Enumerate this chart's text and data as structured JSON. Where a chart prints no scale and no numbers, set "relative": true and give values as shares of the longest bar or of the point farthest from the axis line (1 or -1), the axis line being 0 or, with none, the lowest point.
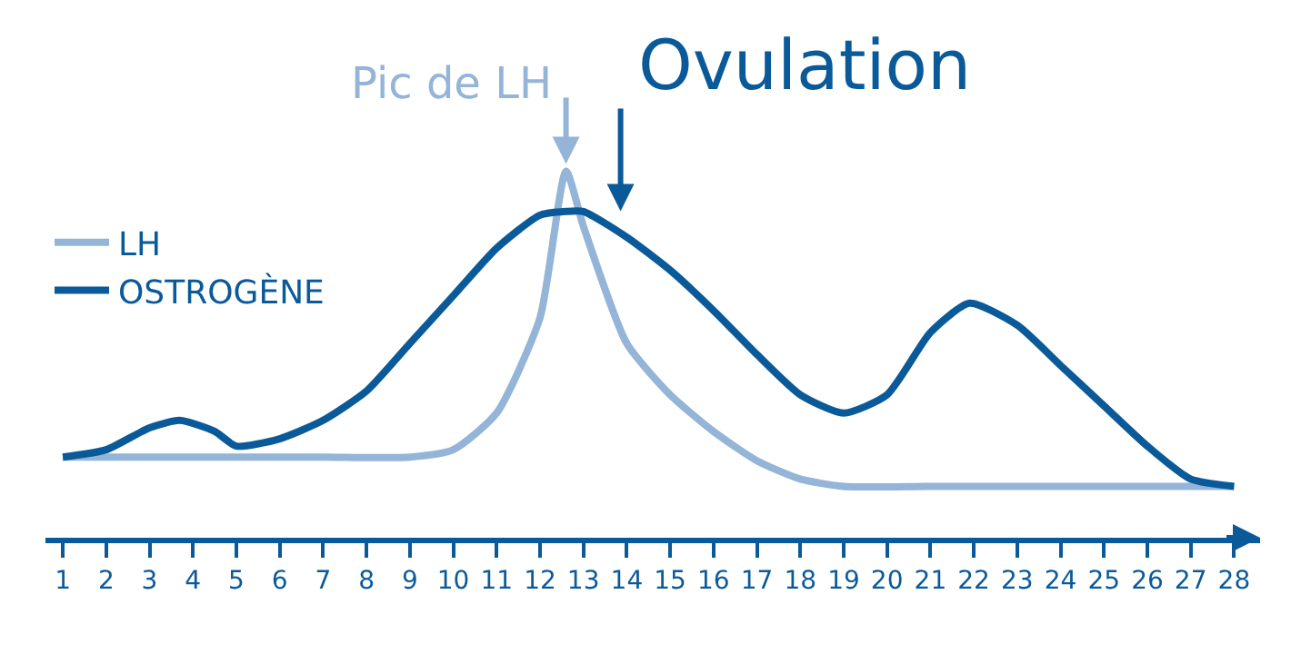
{
  "chart_data": {
    "type": "line",
    "relative": true,
    "xlim": [
      0.6,
      28.6
    ],
    "xticks": [
      1,
      2,
      3,
      4,
      5,
      6,
      7,
      8,
      9,
      10,
      11,
      12,
      13,
      14,
      15,
      16,
      17,
      18,
      19,
      20,
      21,
      22,
      23,
      24,
      25,
      26,
      27,
      28
    ],
    "series": [
      {
        "name": "LH",
        "color": "#94b4d8",
        "x": [
          1,
          3,
          5,
          7,
          9,
          10,
          11,
          12,
          12.6,
          13,
          14,
          15,
          16,
          17,
          18,
          19,
          21,
          23,
          25,
          28
        ],
        "values": [
          0.22,
          0.22,
          0.22,
          0.22,
          0.22,
          0.24,
          0.34,
          0.6,
          1,
          0.85,
          0.53,
          0.39,
          0.29,
          0.21,
          0.16,
          0.14,
          0.14,
          0.14,
          0.14,
          0.14
        ]
      },
      {
        "name": "OSTROGÈNE",
        "color": "#0a5a9a",
        "x": [
          1,
          2,
          3,
          3.7,
          4.5,
          5,
          6,
          7,
          8,
          9,
          10,
          11,
          12,
          12.6,
          13,
          14,
          15,
          16,
          17,
          18,
          19,
          20,
          21,
          21.9,
          23,
          24,
          25,
          26,
          27,
          28
        ],
        "values": [
          0.22,
          0.24,
          0.3,
          0.32,
          0.29,
          0.25,
          0.27,
          0.32,
          0.4,
          0.53,
          0.66,
          0.79,
          0.88,
          0.89,
          0.89,
          0.82,
          0.73,
          0.62,
          0.5,
          0.39,
          0.34,
          0.39,
          0.56,
          0.64,
          0.58,
          0.47,
          0.36,
          0.25,
          0.16,
          0.14
        ]
      }
    ],
    "annotations": [
      "Pic de LH",
      "Ovulation"
    ],
    "legend": "top left",
    "marker": "none",
    "line_style": "solid"
  }
}
